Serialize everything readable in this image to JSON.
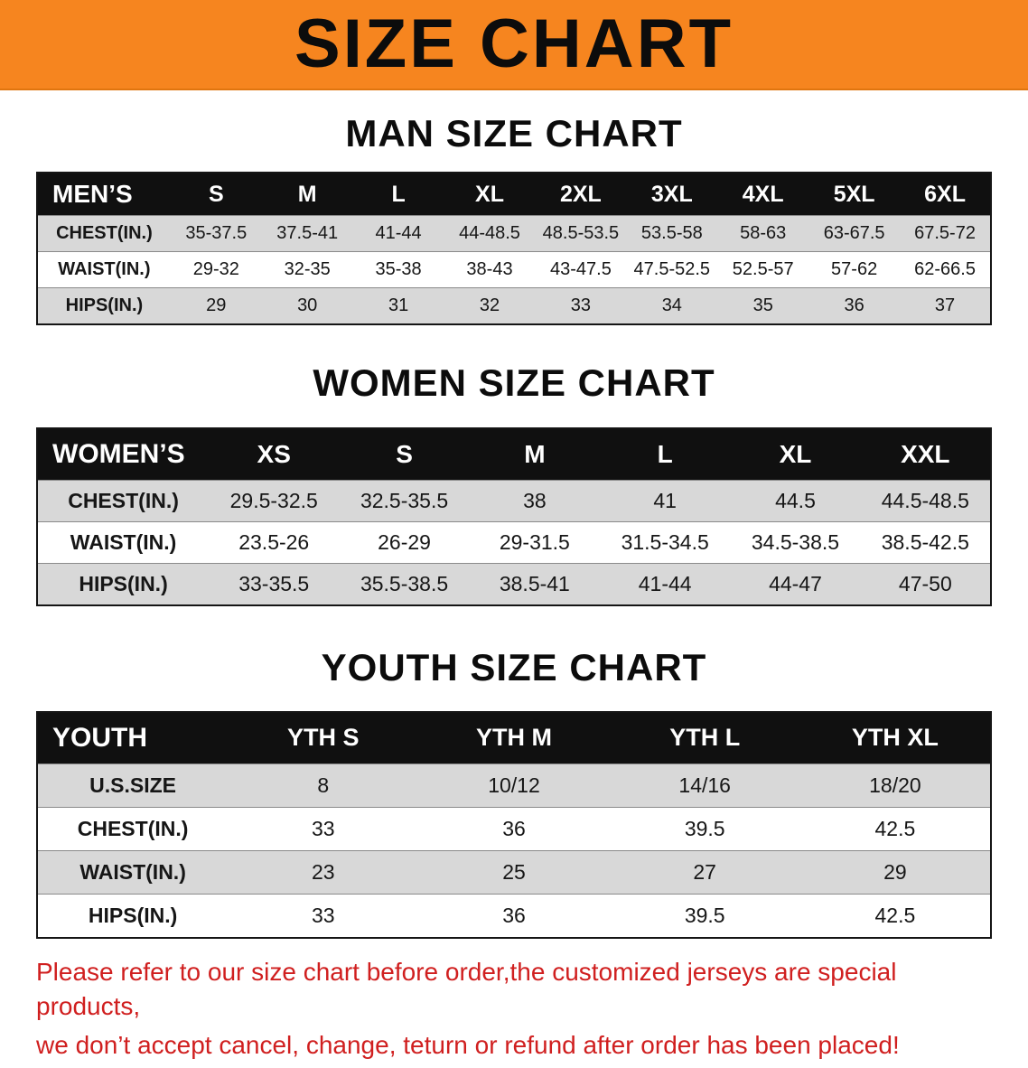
{
  "colors": {
    "banner_bg": "#F6851F",
    "banner_text": "#0C0C0C",
    "table_header_bg": "#101010",
    "table_header_text": "#FFFFFF",
    "row_alt_bg": "#D8D8D8",
    "notice_text": "#D01F1F"
  },
  "banner": {
    "title": "SIZE CHART"
  },
  "sections": [
    {
      "heading": "MAN SIZE CHART",
      "table": {
        "header": [
          "MEN’S",
          "S",
          "M",
          "L",
          "XL",
          "2XL",
          "3XL",
          "4XL",
          "5XL",
          "6XL"
        ],
        "rows": [
          [
            "CHEST(IN.)",
            "35-37.5",
            "37.5-41",
            "41-44",
            "44-48.5",
            "48.5-53.5",
            "53.5-58",
            "58-63",
            "63-67.5",
            "67.5-72"
          ],
          [
            "WAIST(IN.)",
            "29-32",
            "32-35",
            "35-38",
            "38-43",
            "43-47.5",
            "47.5-52.5",
            "52.5-57",
            "57-62",
            "62-66.5"
          ],
          [
            "HIPS(IN.)",
            "29",
            "30",
            "31",
            "32",
            "33",
            "34",
            "35",
            "36",
            "37"
          ]
        ]
      }
    },
    {
      "heading": "WOMEN SIZE CHART",
      "table": {
        "header": [
          "WOMEN’S",
          "XS",
          "S",
          "M",
          "L",
          "XL",
          "XXL"
        ],
        "rows": [
          [
            "CHEST(IN.)",
            "29.5-32.5",
            "32.5-35.5",
            "38",
            "41",
            "44.5",
            "44.5-48.5"
          ],
          [
            "WAIST(IN.)",
            "23.5-26",
            "26-29",
            "29-31.5",
            "31.5-34.5",
            "34.5-38.5",
            "38.5-42.5"
          ],
          [
            "HIPS(IN.)",
            "33-35.5",
            "35.5-38.5",
            "38.5-41",
            "41-44",
            "44-47",
            "47-50"
          ]
        ]
      }
    },
    {
      "heading": "YOUTH SIZE CHART",
      "table": {
        "header": [
          "YOUTH",
          "YTH S",
          "YTH M",
          "YTH L",
          "YTH XL"
        ],
        "rows": [
          [
            "U.S.SIZE",
            "8",
            "10/12",
            "14/16",
            "18/20"
          ],
          [
            "CHEST(IN.)",
            "33",
            "36",
            "39.5",
            "42.5"
          ],
          [
            "WAIST(IN.)",
            "23",
            "25",
            "27",
            "29"
          ],
          [
            "HIPS(IN.)",
            "33",
            "36",
            "39.5",
            "42.5"
          ]
        ]
      }
    }
  ],
  "notice": {
    "lines": [
      "Please refer to our size chart before order,the customized jerseys are special products,",
      "we don’t accept cancel, change, teturn or refund after order has been placed!"
    ]
  }
}
